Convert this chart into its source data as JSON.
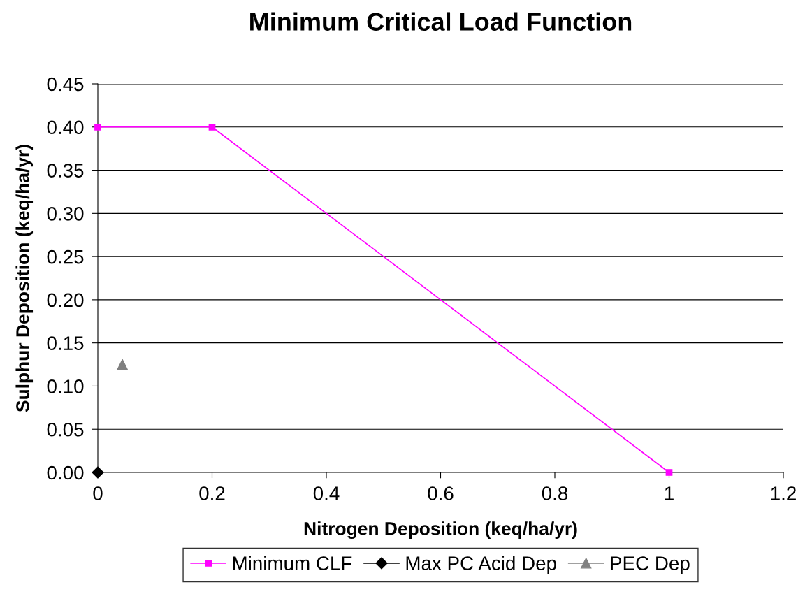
{
  "chart_data": {
    "type": "line",
    "title": "Minimum Critical Load Function",
    "xlabel": "Nitrogen Deposition (keq/ha/yr)",
    "ylabel": "Sulphur Deposition (keq/ha/yr)",
    "series": [
      {
        "name": "Minimum CLF",
        "color": "#ff00ff",
        "marker": "square",
        "x": [
          0,
          0.2,
          1
        ],
        "values": [
          0.4,
          0.4,
          0
        ]
      },
      {
        "name": "Max PC Acid Dep",
        "color": "#000000",
        "marker": "diamond",
        "x": [
          0
        ],
        "values": [
          0
        ]
      },
      {
        "name": "PEC Dep",
        "color": "#808080",
        "marker": "triangle",
        "x": [
          0.043
        ],
        "values": [
          0.125
        ]
      }
    ],
    "xlim": [
      0,
      1.2
    ],
    "xticks": [
      0,
      0.2,
      0.4,
      0.6,
      0.8,
      1,
      1.2
    ],
    "ylim": [
      0,
      0.45
    ],
    "yticks": [
      {
        "value": 0,
        "label": "0.00"
      },
      {
        "value": 0.05,
        "label": "0.05"
      },
      {
        "value": 0.1,
        "label": "0.10"
      },
      {
        "value": 0.15,
        "label": "0.15"
      },
      {
        "value": 0.2,
        "label": "0.20"
      },
      {
        "value": 0.25,
        "label": "0.25"
      },
      {
        "value": 0.3,
        "label": "0.30"
      },
      {
        "value": 0.35,
        "label": "0.35"
      },
      {
        "value": 0.4,
        "label": "0.40"
      },
      {
        "value": 0.45,
        "label": "0.45"
      }
    ],
    "grid": "y",
    "legend": "bottom"
  }
}
